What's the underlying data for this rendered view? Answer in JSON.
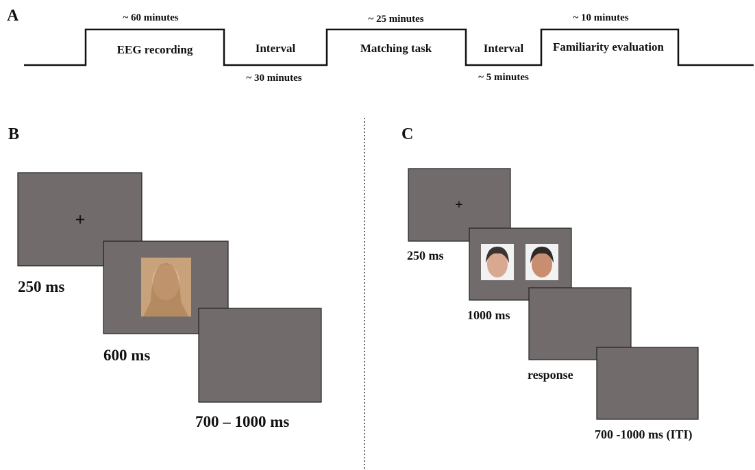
{
  "panel_a": {
    "label": "A",
    "durations": [
      "~ 60 minutes",
      "~ 30 minutes",
      "~ 25 minutes",
      "~ 5 minutes",
      "~ 10 minutes"
    ],
    "stages": [
      "EEG recording",
      "Interval",
      "Matching task",
      "Interval",
      "Familiarity evaluation"
    ]
  },
  "panel_b": {
    "label": "B",
    "fixation": "+",
    "timings": [
      "250 ms",
      "600 ms",
      "700 – 1000 ms"
    ]
  },
  "panel_c": {
    "label": "C",
    "fixation": "+",
    "timings": [
      "250 ms",
      "1000 ms",
      "response",
      "700 -1000 ms (ITI)"
    ]
  }
}
